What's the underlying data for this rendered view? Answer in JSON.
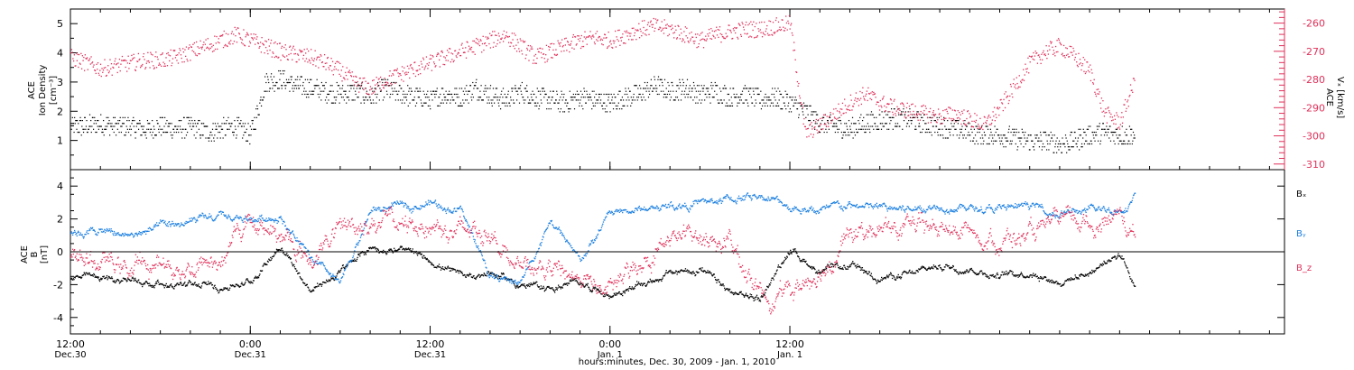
{
  "chart_data": [
    {
      "type": "scatter",
      "panel": "top",
      "ylabel_left": [
        "ACE",
        "Ion Density",
        "[cm⁻³]"
      ],
      "ylabel_right": [
        "ACE",
        "Vₓ [km/s]"
      ],
      "ylim_left": [
        0,
        5.5
      ],
      "ylim_right": [
        -312,
        -255
      ],
      "yticks_left": [
        "1",
        "2",
        "3",
        "4",
        "5"
      ],
      "yticks_right": [
        "-260",
        "-270",
        "-280",
        "-290",
        "-300",
        "-310"
      ],
      "colors": {
        "density": "#000000",
        "vx": "#e0305a"
      },
      "series": [
        {
          "name": "Ion Density",
          "x_hours": [
            0,
            1,
            2,
            3,
            4,
            5,
            6,
            7,
            8,
            9,
            10,
            11,
            12,
            13,
            14,
            15,
            16,
            17,
            18,
            19,
            20,
            21,
            22,
            23,
            24,
            25,
            26,
            27,
            28,
            29,
            30,
            31,
            32,
            33,
            34,
            35,
            36,
            37,
            38,
            39,
            40,
            41,
            42,
            43,
            44,
            45,
            46,
            47,
            48,
            49,
            50,
            51,
            52,
            53,
            54,
            55,
            56,
            57,
            58,
            59,
            60,
            61,
            62,
            63,
            64,
            65,
            66,
            67,
            68,
            69,
            70,
            71
          ],
          "values": [
            1.5,
            1.5,
            1.6,
            1.5,
            1.5,
            1.4,
            1.5,
            1.4,
            1.5,
            1.3,
            1.4,
            1.5,
            1.2,
            3.0,
            3.1,
            2.9,
            2.8,
            2.7,
            2.6,
            2.7,
            2.5,
            2.8,
            2.6,
            2.5,
            2.4,
            2.6,
            2.5,
            2.8,
            2.6,
            2.4,
            2.7,
            2.5,
            2.4,
            2.3,
            2.5,
            2.4,
            2.3,
            2.5,
            2.6,
            2.9,
            2.7,
            2.8,
            2.6,
            2.7,
            2.5,
            2.6,
            2.4,
            2.5,
            2.3,
            2.0,
            1.6,
            1.5,
            1.4,
            1.6,
            1.7,
            1.8,
            1.7,
            1.6,
            1.5,
            1.4,
            1.3,
            1.2,
            1.2,
            1.1,
            1.0,
            1.0,
            0.9,
            1.0,
            1.2,
            1.3,
            1.2,
            1.2
          ],
          "spread": 0.35
        },
        {
          "name": "Vx",
          "x_hours": [
            0,
            1,
            2,
            3,
            4,
            5,
            6,
            7,
            8,
            9,
            10,
            11,
            12,
            13,
            14,
            15,
            16,
            17,
            18,
            19,
            20,
            21,
            22,
            23,
            24,
            25,
            26,
            27,
            28,
            29,
            30,
            31,
            32,
            33,
            34,
            35,
            36,
            37,
            38,
            39,
            40,
            41,
            42,
            43,
            44,
            45,
            46,
            47,
            48,
            49,
            50,
            51,
            52,
            53,
            54,
            55,
            56,
            57,
            58,
            59,
            60,
            61,
            62,
            63,
            64,
            65,
            66,
            67,
            68,
            69,
            70,
            71
          ],
          "values": [
            -272,
            -274,
            -276,
            -275,
            -274,
            -273,
            -273,
            -272,
            -270,
            -268,
            -266,
            -264,
            -266,
            -268,
            -270,
            -271,
            -272,
            -274,
            -277,
            -281,
            -283,
            -280,
            -278,
            -276,
            -274,
            -272,
            -270,
            -268,
            -266,
            -264,
            -268,
            -272,
            -270,
            -268,
            -266,
            -265,
            -266,
            -264,
            -262,
            -261,
            -262,
            -264,
            -266,
            -264,
            -263,
            -262,
            -262,
            -261,
            -260,
            -299,
            -296,
            -292,
            -288,
            -285,
            -288,
            -290,
            -291,
            -292,
            -293,
            -292,
            -294,
            -296,
            -290,
            -282,
            -274,
            -270,
            -268,
            -272,
            -277,
            -292,
            -295,
            -280
          ],
          "spread": 3
        }
      ]
    },
    {
      "type": "scatter",
      "panel": "bottom",
      "ylabel_left": [
        "ACE",
        "B",
        "[nT]"
      ],
      "ylim": [
        -5,
        5
      ],
      "yticks": [
        "4",
        "2",
        "0",
        "-2",
        "-4"
      ],
      "colors": {
        "Bx": "#000000",
        "By": "#1a7fe0",
        "Bz": "#e0305a"
      },
      "legend": [
        {
          "key": "Bx",
          "label": "Bₓ",
          "color": "#000000"
        },
        {
          "key": "By",
          "label": "Bᵧ",
          "color": "#1a7fe0"
        },
        {
          "key": "Bz",
          "label": "B_z",
          "color": "#e0305a"
        }
      ],
      "series": [
        {
          "name": "Bx",
          "x_hours": [
            0,
            2,
            4,
            6,
            8,
            10,
            12,
            14,
            16,
            18,
            20,
            22,
            24,
            26,
            28,
            30,
            32,
            34,
            36,
            38,
            40,
            42,
            44,
            46,
            48,
            50,
            52,
            54,
            56,
            58,
            60,
            62,
            64,
            66,
            68,
            70,
            71
          ],
          "values": [
            -1.5,
            -1.6,
            -1.7,
            -1.9,
            -2.0,
            -2.1,
            -1.8,
            0.5,
            -2.4,
            -1.2,
            0.3,
            0.1,
            -0.5,
            -1.5,
            -1.2,
            -2.0,
            -2.2,
            -1.8,
            -2.6,
            -2.0,
            -1.3,
            -1.0,
            -2.5,
            -2.8,
            0.2,
            -1.2,
            -0.9,
            -1.5,
            -1.4,
            -0.8,
            -1.0,
            -1.4,
            -1.2,
            -1.8,
            -1.2,
            0.0,
            -1.9
          ],
          "spread": 0.35
        },
        {
          "name": "By",
          "x_hours": [
            0,
            2,
            4,
            6,
            8,
            10,
            12,
            14,
            16,
            18,
            20,
            22,
            24,
            26,
            28,
            30,
            32,
            34,
            36,
            38,
            40,
            42,
            44,
            46,
            48,
            50,
            52,
            54,
            56,
            58,
            60,
            62,
            64,
            66,
            68,
            70,
            71
          ],
          "values": [
            1.2,
            1.3,
            1.0,
            1.5,
            1.8,
            2.1,
            2.0,
            2.2,
            -0.5,
            -2.0,
            2.5,
            2.8,
            3.0,
            2.6,
            -1.5,
            -1.8,
            1.8,
            -0.5,
            2.4,
            2.6,
            2.8,
            3.0,
            3.2,
            3.5,
            2.8,
            2.5,
            2.8,
            2.7,
            2.6,
            2.9,
            2.7,
            2.6,
            2.8,
            2.4,
            2.5,
            2.6,
            3.4
          ],
          "spread": 0.4
        },
        {
          "name": "Bz",
          "x_hours": [
            0,
            2,
            4,
            6,
            8,
            10,
            12,
            14,
            16,
            18,
            20,
            22,
            24,
            26,
            28,
            30,
            32,
            34,
            36,
            38,
            40,
            42,
            44,
            46,
            48,
            50,
            52,
            54,
            56,
            58,
            60,
            62,
            64,
            66,
            68,
            70,
            71
          ],
          "values": [
            -0.3,
            -0.6,
            -1.0,
            -0.8,
            -0.9,
            -0.5,
            2.0,
            1.0,
            -0.5,
            1.5,
            2.0,
            1.6,
            1.8,
            1.2,
            1.5,
            -1.2,
            -1.0,
            -1.5,
            -2.5,
            -0.5,
            0.8,
            1.0,
            0.5,
            -2.6,
            -2.5,
            -1.0,
            1.0,
            1.5,
            1.3,
            1.5,
            1.2,
            0.8,
            1.0,
            1.6,
            1.8,
            2.2,
            1.0
          ],
          "spread": 1.0
        }
      ]
    }
  ],
  "x_axis": {
    "xlim_hours": [
      0,
      81
    ],
    "major_ticks": [
      {
        "hour": 0,
        "label": "12:00",
        "sublabel": "Dec.30"
      },
      {
        "hour": 12,
        "label": "0:00",
        "sublabel": "Dec.31"
      },
      {
        "hour": 24,
        "label": "12:00",
        "sublabel": "Dec.31"
      },
      {
        "hour": 36,
        "label": "0:00",
        "sublabel": "Jan. 1"
      },
      {
        "hour": 48,
        "label": "12:00",
        "sublabel": "Jan. 1"
      }
    ],
    "title": "hours:minutes, Dec. 30, 2009 - Jan. 1, 2010"
  }
}
